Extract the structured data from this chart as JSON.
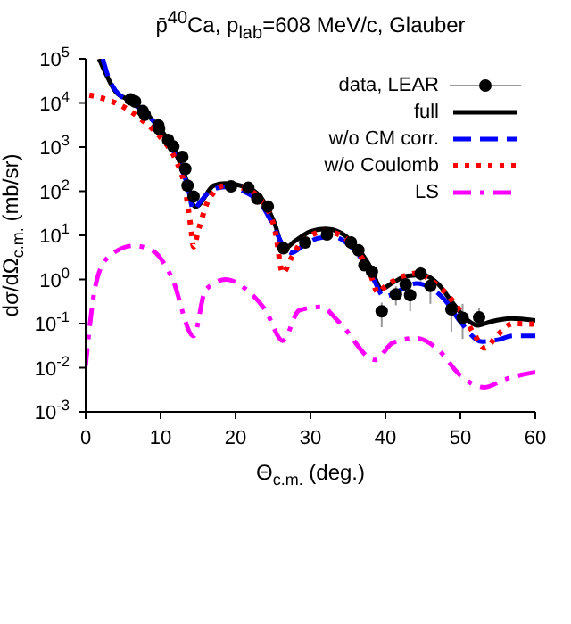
{
  "chart_data": {
    "type": "line",
    "title": "p̄$^{40}$Ca, p$_{lab}$=608 MeV/c, Glauber",
    "xlabel": "Θ$_{c.m.}$ (deg.)",
    "ylabel": "dσ/dΩ$_{c.m.}$ (mb/sr)",
    "xlim": [
      0,
      60
    ],
    "xticks": [
      0,
      10,
      20,
      30,
      40,
      50,
      60
    ],
    "ylim": [
      0.001,
      100000
    ],
    "log": "y",
    "yticks": [
      {
        "value": 0.001,
        "label": "10$^{-3}$"
      },
      {
        "value": 0.01,
        "label": "10$^{-2}$"
      },
      {
        "value": 0.1,
        "label": "10$^{-1}$"
      },
      {
        "value": 1,
        "label": "10$^{0}$"
      },
      {
        "value": 10,
        "label": "10$^{1}$"
      },
      {
        "value": 100,
        "label": "10$^{2}$"
      },
      {
        "value": 1000,
        "label": "10$^{3}$"
      },
      {
        "value": 10000,
        "label": "10$^{4}$"
      },
      {
        "value": 100000,
        "label": "10$^{5}$"
      }
    ],
    "legend": "top right",
    "series": [
      {
        "name": "data, LEAR",
        "type": "scatter",
        "marker": "circle",
        "color": "#000000",
        "x": [
          6.0,
          6.6,
          7.6,
          7.9,
          9.7,
          9.8,
          11.0,
          11.7,
          12.9,
          13.3,
          13.6,
          14.4,
          19.4,
          21.7,
          22.9,
          24.3,
          26.4,
          29.3,
          32.2,
          35.4,
          36.4,
          37.2,
          38.2,
          39.5,
          41.4,
          42.7,
          43.3,
          44.7,
          46.0,
          48.8,
          50.3,
          52.5
        ],
        "values": [
          12000,
          10700,
          6600,
          5400,
          3100,
          2600,
          1450,
          1030,
          600,
          320,
          134,
          76,
          129,
          120,
          68,
          45,
          5.1,
          6.9,
          10.5,
          6.9,
          4.6,
          2.1,
          1.5,
          0.19,
          0.46,
          0.77,
          0.44,
          1.35,
          0.71,
          0.21,
          0.135,
          0.138
        ],
        "errors": [
          null,
          null,
          null,
          null,
          null,
          null,
          null,
          null,
          null,
          null,
          null,
          null,
          null,
          null,
          null,
          null,
          null,
          null,
          null,
          null,
          null,
          null,
          null,
          [
            0.083,
            0.3
          ],
          [
            0.26,
            0.7
          ],
          [
            0.5,
            1.2
          ],
          [
            0.19,
            0.69
          ],
          [
            0.9,
            2.0
          ],
          [
            0.28,
            1.0
          ],
          [
            0.066,
            0.36
          ],
          [
            0.045,
            0.28
          ],
          [
            0.082,
            0.23
          ]
        ]
      },
      {
        "name": "full",
        "line_style": "solid",
        "color": "#000000",
        "x": [
          1.8,
          2.9,
          4.0,
          6.0,
          8.4,
          10.8,
          12.4,
          13.6,
          14.4,
          14.7,
          17.1,
          18.6,
          21.1,
          23.5,
          25.1,
          26.5,
          28,
          30,
          32,
          34,
          36,
          38,
          39.5,
          41,
          43,
          45,
          47,
          49,
          51,
          52.3,
          54,
          56.8,
          60
        ],
        "values": [
          100000,
          39000,
          18000,
          11200,
          5100,
          1620,
          520,
          150,
          48,
          45,
          135,
          150,
          129,
          68,
          21,
          5.0,
          7.6,
          12.3,
          14,
          11.5,
          5.8,
          1.9,
          0.61,
          0.85,
          1.2,
          1.26,
          0.8,
          0.29,
          0.118,
          0.091,
          0.11,
          0.13,
          0.117
        ]
      },
      {
        "name": "w/o CM corr.",
        "line_style": "dashed",
        "color": "#0000ff",
        "x": [
          2.3,
          3,
          4,
          6,
          8.4,
          10.8,
          12.4,
          13.6,
          14.4,
          15.2,
          17,
          18.6,
          21,
          23.5,
          25,
          26.5,
          27.5,
          29,
          31,
          33,
          35,
          37,
          38.5,
          39.8,
          41.5,
          43,
          44.1,
          46,
          48,
          50,
          52.9,
          55,
          57,
          60
        ],
        "values": [
          100000,
          40000,
          19000,
          10500,
          5000,
          1550,
          460,
          130,
          37,
          55,
          110,
          125,
          100,
          48,
          17,
          5.4,
          4.0,
          5.8,
          8.6,
          9.3,
          6.3,
          2.6,
          0.93,
          0.41,
          0.51,
          0.72,
          0.81,
          0.65,
          0.33,
          0.11,
          0.039,
          0.043,
          0.053,
          0.053
        ]
      },
      {
        "name": "w/o Coulomb",
        "line_style": "dotted",
        "color": "#ff0000",
        "x": [
          0.5,
          2.1,
          5.2,
          7.6,
          10,
          12,
          13.2,
          14.0,
          14.4,
          15,
          16.5,
          18.6,
          21,
          23.5,
          25.3,
          26.3,
          27.5,
          29,
          32,
          34,
          36,
          38,
          39,
          40,
          42,
          44,
          46,
          48,
          50,
          52,
          53.2,
          55,
          57,
          60
        ],
        "values": [
          15000,
          13000,
          7900,
          4000,
          1660,
          520,
          134,
          17,
          5.5,
          12.3,
          68,
          134,
          118,
          59,
          12.3,
          1.4,
          3.2,
          7.6,
          12.3,
          10,
          5.0,
          1.3,
          0.5,
          0.7,
          1.1,
          1.38,
          0.98,
          0.5,
          0.19,
          0.052,
          0.028,
          0.056,
          0.1,
          0.097
        ]
      },
      {
        "name": "LS",
        "line_style": "dashdot",
        "color": "#ff00ff",
        "x": [
          0,
          1.3,
          3,
          6.4,
          9,
          11.5,
          14.4,
          16,
          18.7,
          21.5,
          24,
          26.3,
          28.5,
          31.4,
          34,
          38.6,
          41,
          44.1,
          47,
          50,
          53.2,
          56,
          60
        ],
        "values": [
          0.011,
          0.71,
          3.2,
          5.8,
          4.4,
          1.1,
          0.052,
          0.58,
          1.0,
          0.58,
          0.2,
          0.041,
          0.2,
          0.24,
          0.1,
          0.015,
          0.037,
          0.047,
          0.026,
          0.0067,
          0.0036,
          0.0055,
          0.0079
        ]
      }
    ]
  }
}
